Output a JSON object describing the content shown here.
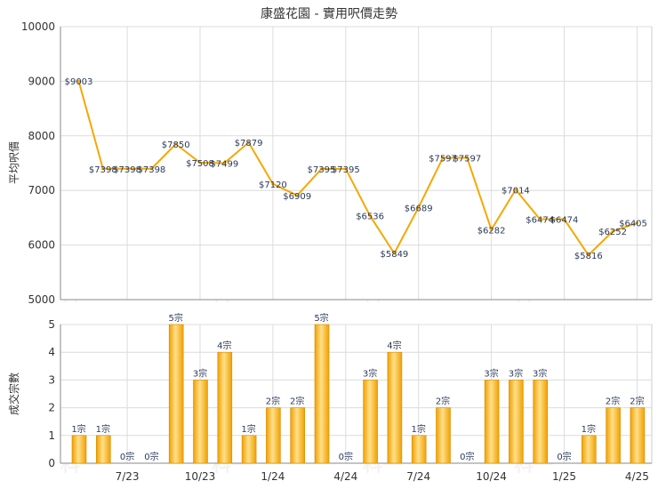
{
  "chart_data": {
    "title": "康盛花園 - 實用呎價走勢",
    "watermark": "科一",
    "colors": {
      "line": "#f5a800",
      "bar_light": "#ffe08a",
      "bar_dark": "#f0a000",
      "bar_edge": "#d98c00"
    },
    "x_tick_labels": [
      "7/23",
      "10/23",
      "1/24",
      "4/24",
      "7/24",
      "10/24",
      "1/25",
      "4/25"
    ],
    "price": {
      "type": "line",
      "ylabel": "平均呎價",
      "ylim": [
        5000,
        10000
      ],
      "yticks": [
        5000,
        6000,
        7000,
        8000,
        9000,
        10000
      ],
      "values": [
        9003,
        7398,
        7398,
        7398,
        7850,
        7508,
        7499,
        7879,
        7120,
        6909,
        7395,
        7395,
        6536,
        5849,
        6689,
        7597,
        7597,
        6282,
        7014,
        6474,
        6474,
        5816,
        6252,
        6405
      ],
      "labels": [
        "$9003",
        "$7398",
        "$7398",
        "$7398",
        "$7850",
        "$7508",
        "$7499",
        "$7879",
        "$7120",
        "$6909",
        "$7395",
        "$7395",
        "$6536",
        "$5849",
        "$6689",
        "$7597",
        "$7597",
        "$6282",
        "$7014",
        "$6474",
        "$6474",
        "$5816",
        "$6252",
        "$6405"
      ]
    },
    "volume": {
      "type": "bar",
      "ylabel": "成交宗數",
      "ylim": [
        0,
        5
      ],
      "yticks": [
        0,
        1,
        2,
        3,
        4,
        5
      ],
      "values": [
        1,
        1,
        0,
        0,
        5,
        3,
        4,
        1,
        2,
        2,
        5,
        0,
        3,
        4,
        1,
        2,
        0,
        3,
        3,
        3,
        0,
        1,
        2,
        2
      ],
      "labels": [
        "1宗",
        "1宗",
        "0宗",
        "0宗",
        "5宗",
        "3宗",
        "4宗",
        "1宗",
        "2宗",
        "2宗",
        "5宗",
        "0宗",
        "3宗",
        "4宗",
        "1宗",
        "2宗",
        "0宗",
        "3宗",
        "3宗",
        "3宗",
        "0宗",
        "1宗",
        "2宗",
        "2宗"
      ]
    }
  }
}
